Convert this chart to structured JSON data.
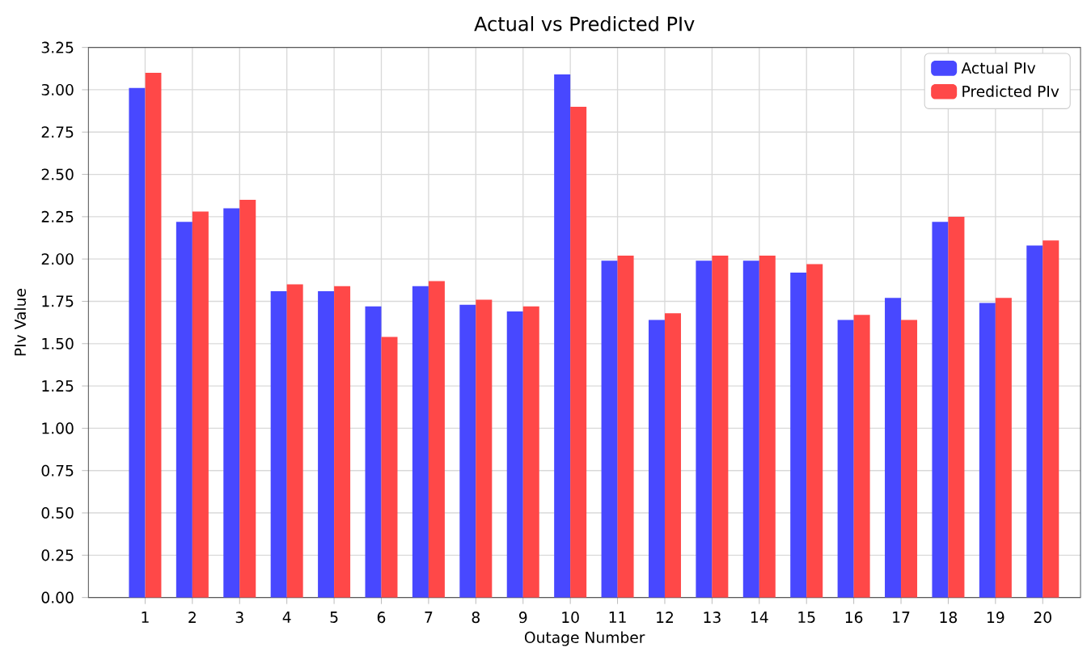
{
  "chart_data": {
    "type": "bar",
    "title": "Actual vs Predicted PIv",
    "xlabel": "Outage Number",
    "ylabel": "PIv Value",
    "categories": [
      "1",
      "2",
      "3",
      "4",
      "5",
      "6",
      "7",
      "8",
      "9",
      "10",
      "11",
      "12",
      "13",
      "14",
      "15",
      "16",
      "17",
      "18",
      "19",
      "20"
    ],
    "series": [
      {
        "name": "Actual PIv",
        "color": "#4848ff",
        "values": [
          3.01,
          2.22,
          2.3,
          1.81,
          1.81,
          1.72,
          1.84,
          1.73,
          1.69,
          3.09,
          1.99,
          1.64,
          1.99,
          1.99,
          1.92,
          1.64,
          1.77,
          2.22,
          1.74,
          2.08
        ]
      },
      {
        "name": "Predicted PIv",
        "color": "#ff4848",
        "values": [
          3.1,
          2.28,
          2.35,
          1.85,
          1.84,
          1.54,
          1.87,
          1.76,
          1.72,
          2.9,
          2.02,
          1.68,
          2.02,
          2.02,
          1.97,
          1.67,
          1.64,
          2.25,
          1.77,
          2.11
        ]
      }
    ],
    "ylim": [
      0,
      3.25
    ],
    "yticks": [
      {
        "value": 0,
        "label": "0.00"
      },
      0.25,
      {
        "value": 0.5,
        "label": "0.50"
      },
      0.75,
      {
        "value": 1,
        "label": "1.00"
      },
      1.25,
      {
        "value": 1.5,
        "label": "1.50"
      },
      1.75,
      {
        "value": 2,
        "label": "2.00"
      },
      2.25,
      {
        "value": 2.5,
        "label": "2.50"
      },
      2.75,
      {
        "value": 3,
        "label": "3.00"
      },
      3.25
    ],
    "grid": true,
    "legend": "top right"
  }
}
